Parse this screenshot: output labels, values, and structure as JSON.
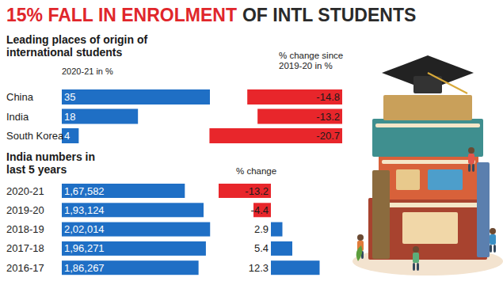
{
  "header": {
    "title": [
      "15% FALL IN ENROLMENT",
      "OF INTL STUDENTS"
    ]
  },
  "chart_data": [
    {
      "type": "bar",
      "orientation": "horizontal",
      "title": "Leading places of origin of international students",
      "subtitle": "2020-21 in %",
      "categories": [
        "China",
        "India",
        "South Korea"
      ],
      "values": [
        35,
        18,
        4
      ],
      "color": "#1f6fc5",
      "xlim": [
        0,
        35
      ],
      "data_labels": true,
      "tick_labels": false
    },
    {
      "type": "bar",
      "orientation": "horizontal",
      "title": "% change since 2019-20 in %",
      "categories": [
        null,
        null,
        null
      ],
      "values": [
        -14.8,
        -13.2,
        -20.7
      ],
      "color": "#e8262b",
      "xlim": [
        -21,
        0
      ],
      "data_labels": true,
      "tick_labels": false
    },
    {
      "type": "bar",
      "orientation": "horizontal",
      "title": "India numbers in last 5 years",
      "categories": [
        "2020-21",
        "2019-20",
        "2018-19",
        "2017-18",
        "2016-17"
      ],
      "values": [
        167582,
        193124,
        202014,
        196271,
        186267
      ],
      "value_labels": [
        "1,67,582",
        "1,93,124",
        "2,02,014",
        "1,96,271",
        "1,86,267"
      ],
      "color": "#1f6fc5",
      "xlim": [
        0,
        205000
      ],
      "data_labels": true,
      "tick_labels": false
    },
    {
      "type": "bar",
      "orientation": "horizontal",
      "title": "% change",
      "categories": [
        null,
        null,
        null,
        null,
        null
      ],
      "values": [
        -13.2,
        -4.4,
        2.9,
        5.4,
        12.3
      ],
      "colors": [
        "#e8262b",
        "#e8262b",
        "#1f6fc5",
        "#1f6fc5",
        "#1f6fc5"
      ],
      "xlim": [
        -14,
        13
      ],
      "data_labels": true,
      "tick_labels": false
    }
  ]
}
